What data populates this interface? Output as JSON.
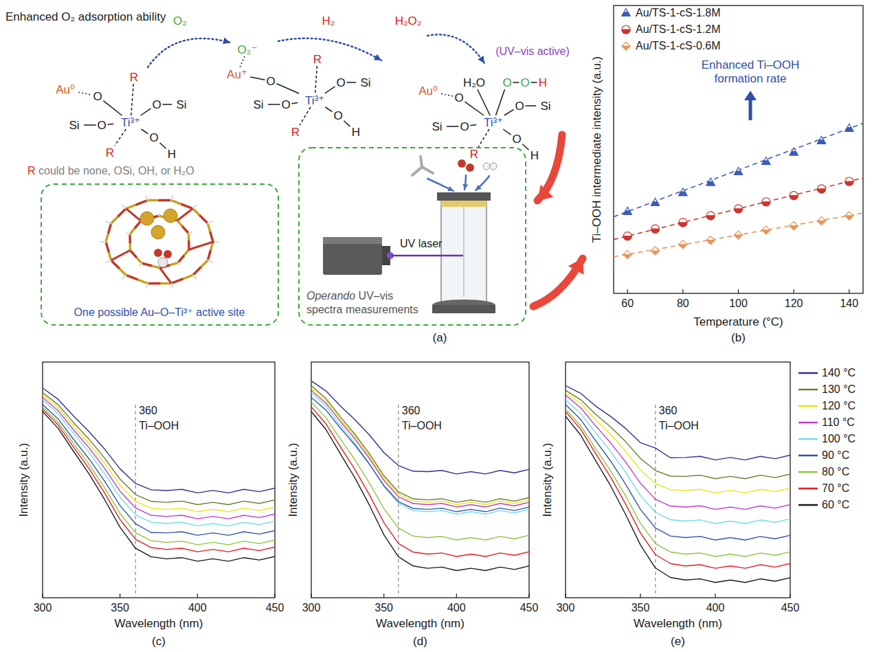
{
  "diagram": {
    "panel": "(a)",
    "heading": "Enhanced O₂ adsorption ability",
    "steps": [
      "O₂",
      "H₂",
      "H₂O₂"
    ],
    "uv_note": "(UV–vis active)",
    "structures": [
      {
        "atoms": [
          "Au⁰",
          "O",
          "R",
          "O",
          "Si",
          "Si",
          "O",
          "Ti³⁺",
          "O",
          "H",
          "R"
        ]
      },
      {
        "atoms": [
          "O₂⁻",
          "Au⁺",
          "O",
          "R",
          "O",
          "Si",
          "Si",
          "O",
          "Ti³⁺",
          "O",
          "H",
          "R"
        ]
      },
      {
        "atoms": [
          "H₂O",
          "O",
          "O",
          "H",
          "Au⁰",
          "O",
          "Si",
          "O",
          "Ti³⁺",
          "O",
          "Si",
          "O",
          "H",
          "R"
        ]
      }
    ],
    "r_note": "R could be none, OSi, OH, or H₂O",
    "site_caption": "One possible Au–O–Ti³⁺ active site",
    "laser_label": "UV laser",
    "measure_caption": "Operando UV–vis spectra measurements"
  },
  "chart_data": [
    {
      "panel": "(b)",
      "type": "scatter",
      "x_label": "Temperature (°C)",
      "y_label": "Ti–OOH intermediate intensity (a.u.)",
      "x": [
        60,
        70,
        80,
        90,
        100,
        110,
        120,
        130,
        140
      ],
      "xlim": [
        55,
        145
      ],
      "xticks": [
        60,
        80,
        100,
        120,
        140
      ],
      "ylim": [
        0,
        10
      ],
      "tick_labels": "x",
      "legend": "top-left",
      "annotation": "Enhanced Ti–OOH formation rate",
      "fit_x": [
        55,
        145
      ],
      "series": [
        {
          "name": "Au/TS-1-cS-1.8M",
          "color": "#3d5bb8",
          "marker": "triangle",
          "line_style": "dashed",
          "values": [
            2.84,
            3.15,
            3.5,
            3.85,
            4.22,
            4.58,
            4.9,
            5.3,
            5.73
          ],
          "fit_values": [
            2.66,
            5.91
          ]
        },
        {
          "name": "Au/TS-1-cS-1.2M",
          "color": "#d0342c",
          "marker": "circle",
          "line_style": "dashed",
          "values": [
            1.99,
            2.24,
            2.46,
            2.7,
            2.94,
            3.18,
            3.4,
            3.63,
            3.89
          ],
          "fit_values": [
            1.87,
            4.01
          ]
        },
        {
          "name": "Au/TS-1-cS-0.6M",
          "color": "#e8955a",
          "marker": "diamond",
          "line_style": "dashed",
          "values": [
            1.35,
            1.48,
            1.7,
            1.85,
            2.03,
            2.2,
            2.35,
            2.52,
            2.7
          ],
          "fit_values": [
            1.27,
            2.79
          ]
        }
      ]
    },
    {
      "panel": "(c)",
      "type": "line",
      "x_label": "Wavelength (nm)",
      "y_label": "Intensity (a.u.)",
      "x": [
        300,
        310,
        320,
        330,
        340,
        350,
        360,
        370,
        380,
        390,
        400,
        410,
        420,
        430,
        440,
        450
      ],
      "xlim": [
        300,
        450
      ],
      "xticks": [
        300,
        350,
        400,
        450
      ],
      "ylim": [
        0,
        10
      ],
      "tick_labels": "x",
      "reference_line": {
        "value": 360,
        "label": "360",
        "text": "Ti–OOH"
      },
      "series": [
        {
          "name": "140 °C",
          "color": "#2e3192",
          "values": [
            8.9,
            8.42,
            7.71,
            7.05,
            6.31,
            5.47,
            4.85,
            4.58,
            4.55,
            4.6,
            4.45,
            4.55,
            4.45,
            4.6,
            4.5,
            4.65
          ]
        },
        {
          "name": "130 °C",
          "color": "#6b7d2b",
          "values": [
            8.7,
            8.19,
            7.43,
            6.73,
            5.93,
            5.03,
            4.38,
            4.09,
            4.05,
            4.1,
            3.95,
            4.05,
            3.95,
            4.1,
            4.0,
            4.15
          ]
        },
        {
          "name": "120 °C",
          "color": "#e6e619",
          "values": [
            8.6,
            8.06,
            7.28,
            6.54,
            5.71,
            4.78,
            4.09,
            3.8,
            3.75,
            3.8,
            3.65,
            3.75,
            3.65,
            3.8,
            3.7,
            3.85
          ]
        },
        {
          "name": "110 °C",
          "color": "#c03cc8",
          "values": [
            8.5,
            7.94,
            7.12,
            6.36,
            5.49,
            4.52,
            3.81,
            3.5,
            3.45,
            3.5,
            3.35,
            3.45,
            3.35,
            3.5,
            3.4,
            3.55
          ]
        },
        {
          "name": "100 °C",
          "color": "#72dbe6",
          "values": [
            8.4,
            7.81,
            6.97,
            6.17,
            5.27,
            4.27,
            3.52,
            3.21,
            3.15,
            3.2,
            3.05,
            3.15,
            3.05,
            3.2,
            3.1,
            3.25
          ]
        },
        {
          "name": "90 °C",
          "color": "#3355aa",
          "values": [
            8.2,
            7.59,
            6.72,
            5.89,
            4.95,
            3.91,
            3.14,
            2.77,
            2.75,
            2.8,
            2.65,
            2.75,
            2.65,
            2.8,
            2.7,
            2.85
          ]
        },
        {
          "name": "80 °C",
          "color": "#8cc63f",
          "values": [
            8.1,
            7.45,
            6.54,
            5.66,
            4.67,
            3.58,
            2.76,
            2.42,
            2.35,
            2.4,
            2.25,
            2.35,
            2.25,
            2.4,
            2.3,
            2.45
          ]
        },
        {
          "name": "70 °C",
          "color": "#e31e24",
          "values": [
            8.0,
            7.33,
            6.39,
            5.48,
            4.45,
            3.32,
            2.48,
            2.13,
            2.05,
            2.1,
            1.95,
            2.05,
            1.95,
            2.1,
            2.0,
            2.15
          ]
        },
        {
          "name": "60 °C",
          "color": "#1a1a1a",
          "values": [
            7.9,
            7.19,
            6.21,
            5.25,
            4.17,
            2.99,
            2.1,
            1.74,
            1.65,
            1.7,
            1.55,
            1.65,
            1.55,
            1.7,
            1.6,
            1.75
          ]
        }
      ]
    },
    {
      "panel": "(d)",
      "type": "line",
      "x_label": "Wavelength (nm)",
      "y_label": "Intensity (a.u.)",
      "x": [
        300,
        310,
        320,
        330,
        340,
        350,
        360,
        370,
        380,
        390,
        400,
        410,
        420,
        430,
        440,
        450
      ],
      "xlim": [
        300,
        450
      ],
      "xticks": [
        300,
        350,
        400,
        450
      ],
      "ylim": [
        0,
        10
      ],
      "tick_labels": "x",
      "reference_line": {
        "value": 360,
        "label": "360",
        "text": "Ti–OOH"
      },
      "series": [
        {
          "name": "140 °C",
          "color": "#2e3192",
          "values": [
            9.2,
            8.78,
            8.14,
            7.56,
            6.91,
            6.16,
            5.61,
            5.37,
            5.35,
            5.4,
            5.25,
            5.35,
            5.25,
            5.4,
            5.3,
            5.45
          ]
        },
        {
          "name": "130 °C",
          "color": "#6b7d2b",
          "values": [
            9.0,
            8.46,
            7.68,
            6.94,
            6.11,
            5.18,
            4.49,
            4.2,
            4.15,
            4.2,
            4.05,
            4.15,
            4.05,
            4.2,
            4.1,
            4.25
          ]
        },
        {
          "name": "120 °C",
          "color": "#e6e619",
          "values": [
            8.9,
            8.36,
            7.58,
            6.84,
            6.01,
            5.08,
            4.39,
            4.1,
            4.05,
            4.1,
            3.95,
            4.05,
            3.95,
            4.1,
            4.0,
            4.15
          ]
        },
        {
          "name": "110 °C",
          "color": "#c03cc8",
          "values": [
            8.8,
            8.26,
            7.48,
            6.74,
            5.91,
            4.98,
            4.29,
            4.0,
            3.95,
            4.0,
            3.85,
            3.95,
            3.85,
            4.0,
            3.9,
            4.05
          ]
        },
        {
          "name": "100 °C",
          "color": "#72dbe6",
          "values": [
            8.7,
            8.14,
            7.32,
            6.56,
            5.69,
            4.72,
            4.01,
            3.7,
            3.65,
            3.7,
            3.55,
            3.65,
            3.55,
            3.7,
            3.6,
            3.75
          ]
        },
        {
          "name": "90 °C",
          "color": "#3355aa",
          "values": [
            8.5,
            7.97,
            7.2,
            6.48,
            5.67,
            4.76,
            4.08,
            3.79,
            3.75,
            3.8,
            3.65,
            3.75,
            3.65,
            3.8,
            3.7,
            3.85
          ]
        },
        {
          "name": "80 °C",
          "color": "#8cc63f",
          "values": [
            8.3,
            7.65,
            6.74,
            5.86,
            4.87,
            3.78,
            2.96,
            2.62,
            2.55,
            2.6,
            2.45,
            2.55,
            2.45,
            2.6,
            2.5,
            2.65
          ]
        },
        {
          "name": "70 °C",
          "color": "#e31e24",
          "values": [
            8.1,
            7.39,
            6.41,
            5.45,
            4.37,
            3.19,
            2.3,
            1.94,
            1.85,
            1.9,
            1.75,
            1.85,
            1.75,
            1.9,
            1.8,
            1.95
          ]
        },
        {
          "name": "60 °C",
          "color": "#1a1a1a",
          "values": [
            7.9,
            7.15,
            6.11,
            5.09,
            3.93,
            2.67,
            1.74,
            1.35,
            1.25,
            1.3,
            1.15,
            1.25,
            1.15,
            1.3,
            1.2,
            1.35
          ]
        }
      ]
    },
    {
      "panel": "(e)",
      "type": "line",
      "x_label": "Wavelength (nm)",
      "y_label": "Intensity (a.u.)",
      "x": [
        300,
        310,
        320,
        330,
        340,
        350,
        360,
        370,
        380,
        390,
        400,
        410,
        420,
        430,
        440,
        450
      ],
      "xlim": [
        300,
        450
      ],
      "xticks": [
        300,
        350,
        400,
        450
      ],
      "ylim": [
        0,
        10
      ],
      "tick_labels": "x",
      "legend": "right",
      "reference_line": {
        "value": 360,
        "label": "360",
        "text": "Ti–OOH"
      },
      "series": [
        {
          "name": "140 °C",
          "color": "#2e3192",
          "values": [
            9.0,
            8.68,
            8.14,
            7.7,
            7.19,
            6.58,
            6.35,
            5.94,
            5.95,
            6.0,
            5.85,
            5.95,
            5.85,
            6.0,
            5.9,
            6.05
          ]
        },
        {
          "name": "130 °C",
          "color": "#6b7d2b",
          "values": [
            8.8,
            8.41,
            7.79,
            7.25,
            6.63,
            5.91,
            5.4,
            5.16,
            5.15,
            5.2,
            5.05,
            5.15,
            5.05,
            5.2,
            5.1,
            5.25
          ]
        },
        {
          "name": "120 °C",
          "color": "#e6e619",
          "values": [
            8.7,
            8.25,
            7.56,
            6.94,
            6.23,
            5.42,
            4.84,
            4.58,
            4.55,
            4.6,
            4.45,
            4.55,
            4.45,
            4.6,
            4.5,
            4.65
          ]
        },
        {
          "name": "110 °C",
          "color": "#c03cc8",
          "values": [
            8.6,
            8.07,
            7.3,
            6.58,
            5.77,
            4.86,
            4.18,
            3.89,
            3.85,
            3.9,
            3.75,
            3.85,
            3.75,
            3.9,
            3.8,
            3.95
          ]
        },
        {
          "name": "100 °C",
          "color": "#72dbe6",
          "values": [
            8.4,
            7.83,
            7.0,
            6.22,
            5.33,
            4.34,
            3.62,
            3.31,
            3.25,
            3.3,
            3.15,
            3.25,
            3.15,
            3.3,
            3.2,
            3.35
          ]
        },
        {
          "name": "90 °C",
          "color": "#3355aa",
          "values": [
            8.2,
            7.57,
            6.67,
            5.81,
            4.83,
            3.75,
            2.96,
            2.62,
            2.55,
            2.6,
            2.45,
            2.55,
            2.45,
            2.6,
            2.5,
            2.65
          ]
        },
        {
          "name": "80 °C",
          "color": "#8cc63f",
          "values": [
            8.0,
            7.31,
            6.34,
            5.4,
            4.33,
            3.16,
            2.3,
            1.94,
            1.85,
            1.9,
            1.75,
            1.85,
            1.75,
            1.9,
            1.8,
            1.95
          ]
        },
        {
          "name": "70 °C",
          "color": "#e31e24",
          "values": [
            7.9,
            7.16,
            6.13,
            5.13,
            3.99,
            2.75,
            1.83,
            1.45,
            1.35,
            1.4,
            1.25,
            1.35,
            1.25,
            1.4,
            1.3,
            1.45
          ]
        },
        {
          "name": "60 °C",
          "color": "#1a1a1a",
          "values": [
            7.7,
            6.91,
            5.83,
            4.76,
            3.55,
            2.24,
            1.26,
            0.86,
            0.75,
            0.8,
            0.65,
            0.75,
            0.65,
            0.8,
            0.7,
            0.85
          ]
        }
      ]
    }
  ]
}
